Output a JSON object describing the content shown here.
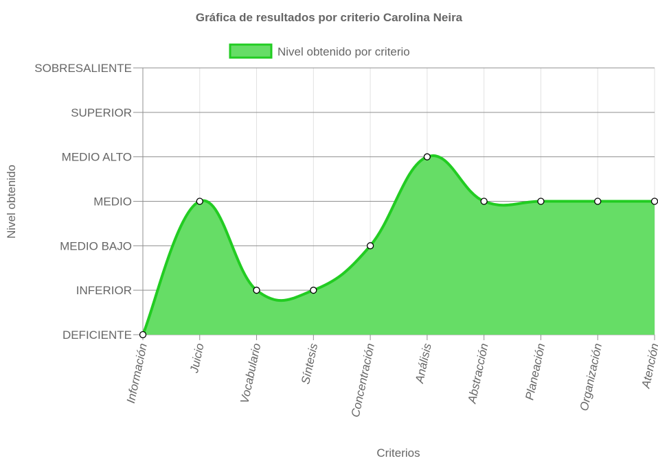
{
  "chart_data": {
    "type": "area",
    "title": "Gráfica de resultados por criterio Carolina Neira",
    "xlabel": "Criterios",
    "ylabel": "Nivel obtenido",
    "categories": [
      "Información",
      "Juicio",
      "Vocabulario",
      "Síntesis",
      "Concentración",
      "Análisis",
      "Abstracción",
      "Planeación",
      "Organización",
      "Atención"
    ],
    "y_levels": [
      "DEFICIENTE",
      "INFERIOR",
      "MEDIO BAJO",
      "MEDIO",
      "MEDIO ALTO",
      "SUPERIOR",
      "SOBRESALIENTE"
    ],
    "ylim": [
      0,
      6
    ],
    "series": [
      {
        "name": "Nivel obtenido por criterio",
        "values": [
          0,
          3,
          1,
          1,
          2,
          4,
          3,
          3,
          3,
          3
        ]
      }
    ],
    "legend_position": "top",
    "grid": true,
    "colors": {
      "fill": "#66dd66",
      "stroke": "#22cc22",
      "point_fill": "#ffffff",
      "point_stroke": "#000000"
    }
  }
}
